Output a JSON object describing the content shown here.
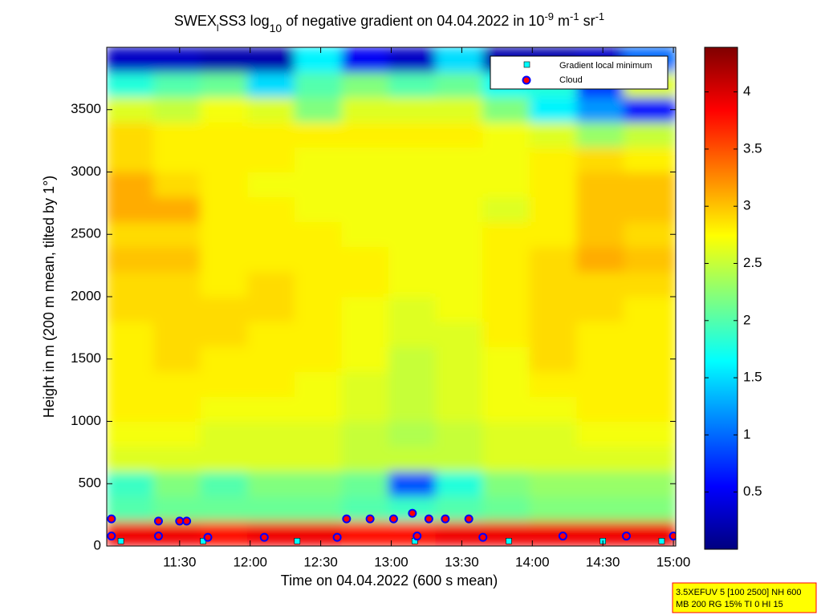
{
  "chart_data": {
    "type": "heatmap",
    "title": [
      "SWEX",
      "l",
      "SS3 log",
      "10",
      " of negative gradient on 04.04.2022 in 10",
      "-9",
      " m",
      "-1",
      " sr",
      "-1"
    ],
    "x_label": "Time on 04.04.2022 (600 s mean)",
    "y_label": "Height in m (200 m mean, tilted by 1°)",
    "xlim": [
      659,
      901
    ],
    "xticks": [
      {
        "value": 690,
        "label": "11:30"
      },
      {
        "value": 720,
        "label": "12:00"
      },
      {
        "value": 750,
        "label": "12:30"
      },
      {
        "value": 780,
        "label": "13:00"
      },
      {
        "value": 810,
        "label": "13:30"
      },
      {
        "value": 840,
        "label": "14:00"
      },
      {
        "value": 870,
        "label": "14:30"
      },
      {
        "value": 900,
        "label": "15:00"
      }
    ],
    "ylim": [
      0,
      4000
    ],
    "yticks": [
      0,
      500,
      1000,
      1500,
      2000,
      2500,
      3000,
      3500
    ],
    "colormap": "jet",
    "clim": [
      0,
      4.39
    ],
    "cticks": [
      0.5,
      1,
      1.5,
      2,
      2.5,
      3,
      3.5,
      4
    ],
    "x": [
      669,
      689,
      709,
      729,
      749,
      769,
      789,
      809,
      829,
      849,
      869,
      889
    ],
    "y": [
      100,
      300,
      500,
      700,
      900,
      1100,
      1300,
      1500,
      1700,
      1900,
      2100,
      2300,
      2500,
      2700,
      2900,
      3100,
      3300,
      3500,
      3700,
      3900
    ],
    "z": [
      [
        3.9,
        3.9,
        3.8,
        3.9,
        3.9,
        3.8,
        3.8,
        3.9,
        3.9,
        3.9,
        3.9,
        3.9
      ],
      [
        2.0,
        2.1,
        2.1,
        2.1,
        2.1,
        2.0,
        1.9,
        2.0,
        2.1,
        2.2,
        2.2,
        2.2
      ],
      [
        1.9,
        2.2,
        2.0,
        2.2,
        2.2,
        2.1,
        0.9,
        1.8,
        2.2,
        2.3,
        2.3,
        2.3
      ],
      [
        2.6,
        2.6,
        2.6,
        2.6,
        2.6,
        2.5,
        2.5,
        2.5,
        2.6,
        2.6,
        2.6,
        2.6
      ],
      [
        2.7,
        2.7,
        2.6,
        2.6,
        2.6,
        2.5,
        2.4,
        2.5,
        2.6,
        2.6,
        2.7,
        2.7
      ],
      [
        2.8,
        2.8,
        2.7,
        2.7,
        2.7,
        2.6,
        2.5,
        2.6,
        2.7,
        2.7,
        2.8,
        2.8
      ],
      [
        2.8,
        2.8,
        2.8,
        2.8,
        2.7,
        2.6,
        2.5,
        2.6,
        2.7,
        2.8,
        2.8,
        2.8
      ],
      [
        2.8,
        2.9,
        2.8,
        2.8,
        2.8,
        2.7,
        2.5,
        2.6,
        2.7,
        2.9,
        2.8,
        2.8
      ],
      [
        2.8,
        2.9,
        2.9,
        2.8,
        2.8,
        2.7,
        2.6,
        2.6,
        2.8,
        2.9,
        2.8,
        2.8
      ],
      [
        2.9,
        2.9,
        2.9,
        2.9,
        2.8,
        2.7,
        2.6,
        2.7,
        2.8,
        2.9,
        2.9,
        2.8
      ],
      [
        2.9,
        2.9,
        2.8,
        2.9,
        2.8,
        2.8,
        2.7,
        2.7,
        2.8,
        2.9,
        2.9,
        2.9
      ],
      [
        3.0,
        3.0,
        2.8,
        2.8,
        2.8,
        2.8,
        2.7,
        2.7,
        2.8,
        2.9,
        3.1,
        3.0
      ],
      [
        2.9,
        2.9,
        2.8,
        2.8,
        2.8,
        2.7,
        2.7,
        2.7,
        2.8,
        2.8,
        3.0,
        2.9
      ],
      [
        3.1,
        3.1,
        2.8,
        2.8,
        2.7,
        2.7,
        2.7,
        2.7,
        2.6,
        2.8,
        3.0,
        3.0
      ],
      [
        3.1,
        2.9,
        2.8,
        2.7,
        2.7,
        2.7,
        2.7,
        2.7,
        2.7,
        2.8,
        3.0,
        3.0
      ],
      [
        2.9,
        2.8,
        2.8,
        2.8,
        2.7,
        2.7,
        2.7,
        2.7,
        2.7,
        2.8,
        2.9,
        2.8
      ],
      [
        2.9,
        2.8,
        2.8,
        2.8,
        2.8,
        2.8,
        2.8,
        2.8,
        2.7,
        2.6,
        2.3,
        2.5
      ],
      [
        2.6,
        2.5,
        2.7,
        2.6,
        2.2,
        2.6,
        2.6,
        2.6,
        2.2,
        1.6,
        1.2,
        0.6
      ],
      [
        1.8,
        2.0,
        2.1,
        1.5,
        2.0,
        2.2,
        2.0,
        2.1,
        1.7,
        1.8,
        0.8,
        2.6
      ],
      [
        0.3,
        0.3,
        0.2,
        0.2,
        1.6,
        0.5,
        0.3,
        1.5,
        0.2,
        0.2,
        0.3,
        1.0
      ]
    ],
    "series": [
      {
        "name": "Gradient local minimum",
        "color": "#00ffff",
        "marker": "square",
        "x": [
          665,
          700,
          740,
          790,
          830,
          870,
          895
        ],
        "values": [
          40,
          40,
          40,
          40,
          40,
          40,
          40
        ]
      },
      {
        "name": "Cloud",
        "color": "#ff0000",
        "marker": "circle",
        "x": [
          661,
          681,
          690,
          693,
          761,
          771,
          781,
          789,
          796,
          803,
          813,
          661,
          681,
          702,
          726,
          757,
          791,
          819,
          853,
          880,
          900
        ],
        "values": [
          218,
          200,
          200,
          200,
          218,
          218,
          218,
          263,
          218,
          218,
          218,
          80,
          80,
          70,
          70,
          70,
          80,
          70,
          80,
          80,
          80
        ]
      }
    ],
    "legend": "upper right",
    "info": [
      "3.5XEFUV 5 [100 2500] NH 600",
      "MB 200 RG 15% TI 0 HI 15"
    ]
  }
}
